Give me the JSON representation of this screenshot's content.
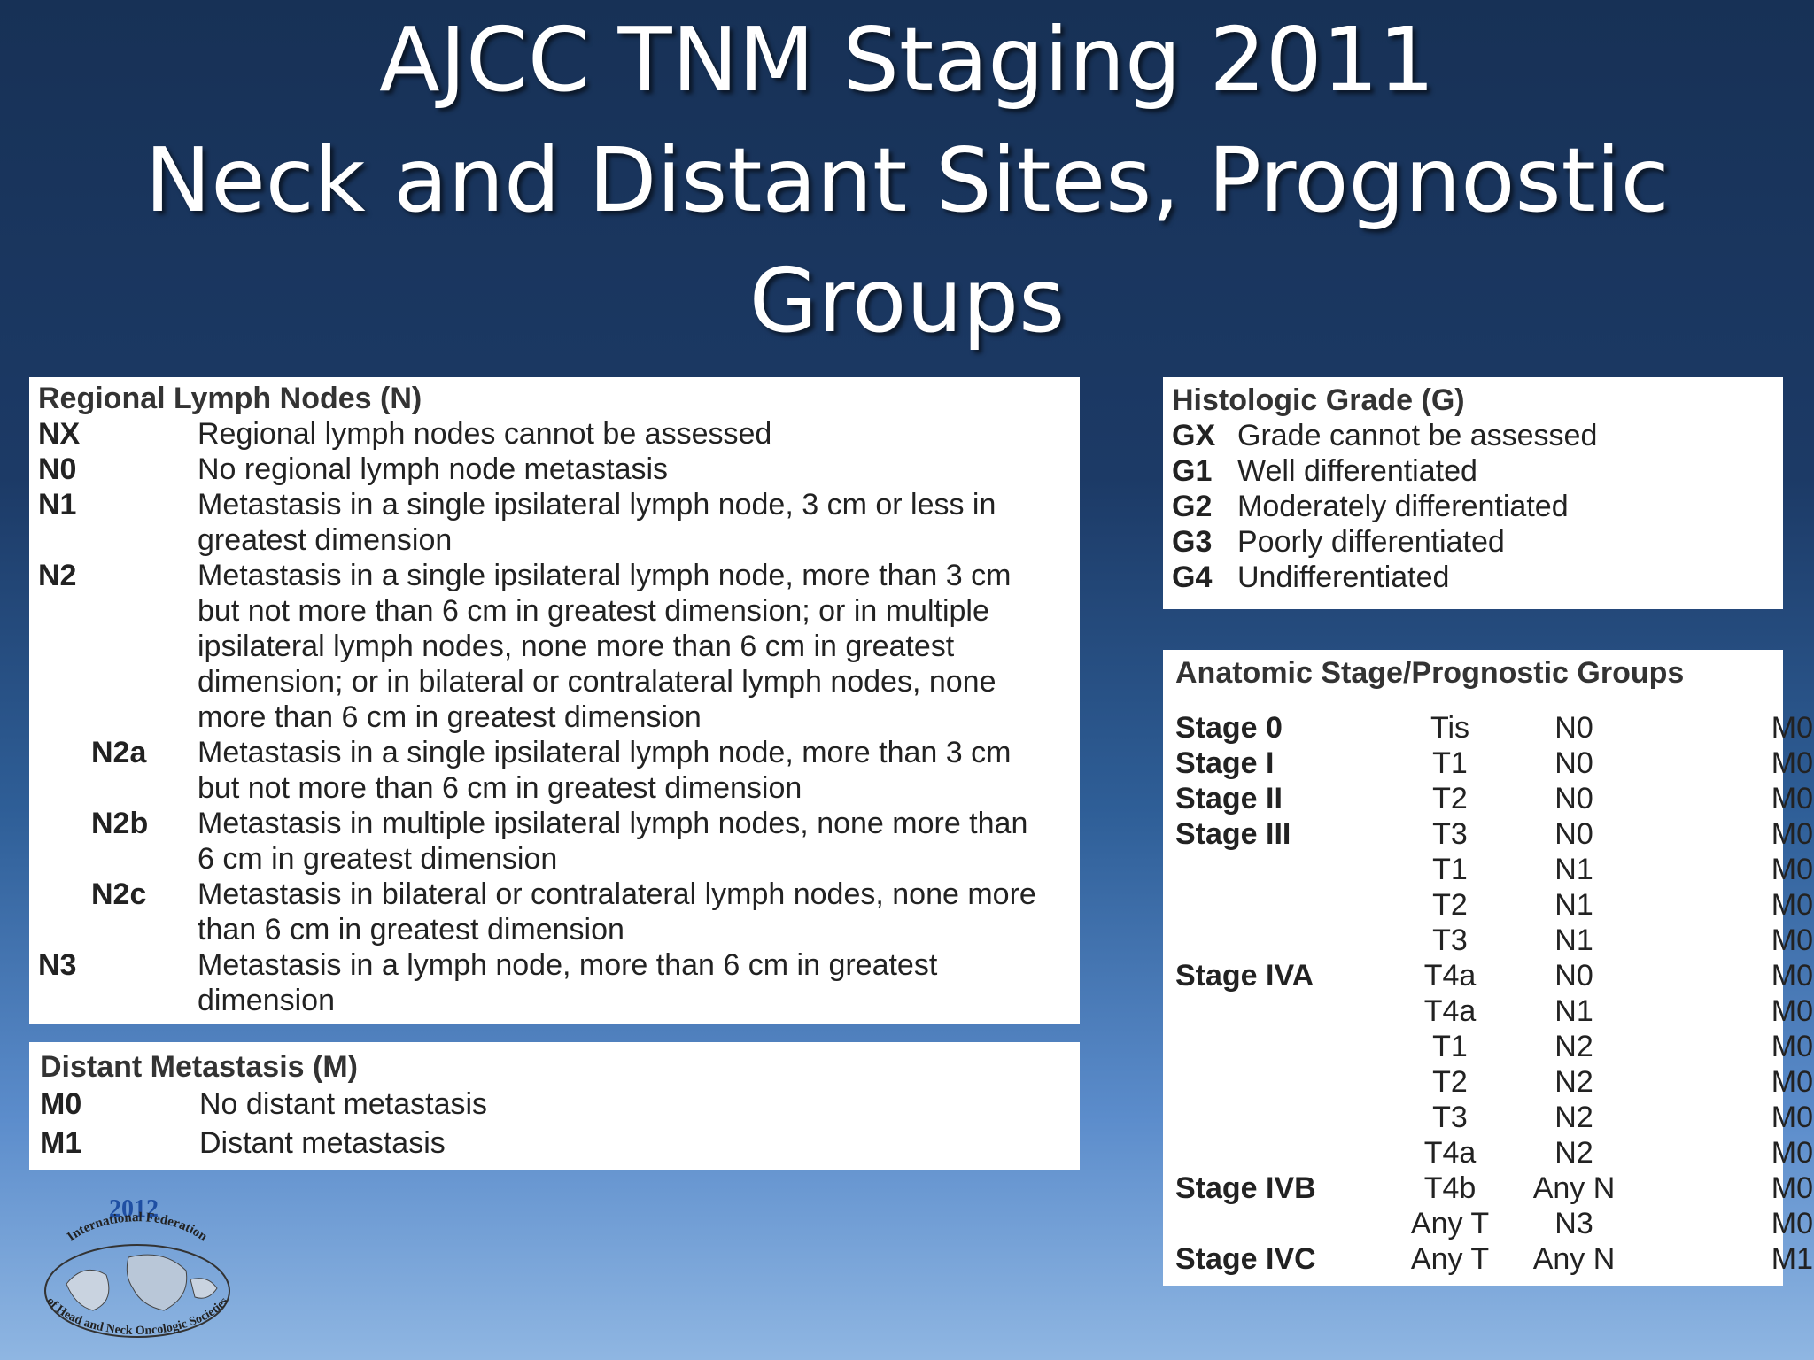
{
  "title": {
    "line1": "AJCC TNM Staging 2011",
    "line2": "Neck and Distant Sites, Prognostic",
    "line3": "Groups"
  },
  "regional_nodes": {
    "title": "Regional Lymph Nodes (N)",
    "rows": [
      {
        "code": "NX",
        "desc": "Regional lymph nodes cannot be assessed"
      },
      {
        "code": "N0",
        "desc": "No regional lymph node metastasis"
      },
      {
        "code": "N1",
        "desc": "Metastasis in a single ipsilateral lymph node, 3 cm or less in greatest dimension"
      },
      {
        "code": "N2",
        "desc": "Metastasis in a single ipsilateral lymph node, more than 3 cm but not more than 6 cm in greatest dimension; or in multiple ipsilateral lymph nodes, none more than 6 cm in greatest dimension; or in bilateral or contralateral lymph nodes, none more than 6 cm in greatest dimension"
      },
      {
        "code": "N2a",
        "desc": "Metastasis in a single ipsilateral lymph node, more than 3 cm but not more than 6 cm in greatest dimension"
      },
      {
        "code": "N2b",
        "desc": "Metastasis in multiple ipsilateral lymph nodes, none more than 6 cm in greatest dimension"
      },
      {
        "code": "N2c",
        "desc": "Metastasis in bilateral or contralateral lymph nodes, none more than 6 cm in greatest dimension"
      },
      {
        "code": "N3",
        "desc": "Metastasis in a lymph node, more than 6 cm in greatest dimension"
      }
    ]
  },
  "distant": {
    "title": "Distant Metastasis (M)",
    "rows": [
      {
        "code": "M0",
        "desc": "No distant metastasis"
      },
      {
        "code": "M1",
        "desc": "Distant metastasis"
      }
    ]
  },
  "grade": {
    "title": "Histologic Grade (G)",
    "rows": [
      {
        "code": "GX",
        "desc": "Grade cannot be assessed"
      },
      {
        "code": "G1",
        "desc": "Well differentiated"
      },
      {
        "code": "G2",
        "desc": "Moderately differentiated"
      },
      {
        "code": "G3",
        "desc": "Poorly differentiated"
      },
      {
        "code": "G4",
        "desc": "Undifferentiated"
      }
    ]
  },
  "stages": {
    "title": "Anatomic Stage/Prognostic Groups",
    "rows": [
      {
        "stage": "Stage 0",
        "t": "Tis",
        "n": "N0",
        "m": "M0"
      },
      {
        "stage": "Stage I",
        "t": "T1",
        "n": "N0",
        "m": "M0"
      },
      {
        "stage": "Stage II",
        "t": "T2",
        "n": "N0",
        "m": "M0"
      },
      {
        "stage": "Stage III",
        "t": "T3",
        "n": "N0",
        "m": "M0"
      },
      {
        "stage": "",
        "t": "T1",
        "n": "N1",
        "m": "M0"
      },
      {
        "stage": "",
        "t": "T2",
        "n": "N1",
        "m": "M0"
      },
      {
        "stage": "",
        "t": "T3",
        "n": "N1",
        "m": "M0"
      },
      {
        "stage": "Stage IVA",
        "t": "T4a",
        "n": "N0",
        "m": "M0"
      },
      {
        "stage": "",
        "t": "T4a",
        "n": "N1",
        "m": "M0"
      },
      {
        "stage": "",
        "t": "T1",
        "n": "N2",
        "m": "M0"
      },
      {
        "stage": "",
        "t": "T2",
        "n": "N2",
        "m": "M0"
      },
      {
        "stage": "",
        "t": "T3",
        "n": "N2",
        "m": "M0"
      },
      {
        "stage": "",
        "t": "T4a",
        "n": "N2",
        "m": "M0"
      },
      {
        "stage": "Stage IVB",
        "t": "T4b",
        "n": "Any N",
        "m": "M0"
      },
      {
        "stage": "",
        "t": "Any T",
        "n": "N3",
        "m": "M0"
      },
      {
        "stage": "Stage IVC",
        "t": "Any T",
        "n": "Any N",
        "m": "M1"
      }
    ]
  },
  "logo": {
    "year": "2012",
    "text_top": "International Federation",
    "text_bottom": "of Head and Neck Oncologic Societies"
  },
  "colors": {
    "logo_blue": "#1f4fa3",
    "background_top": "#173156",
    "background_bottom": "#8fb6e2"
  }
}
